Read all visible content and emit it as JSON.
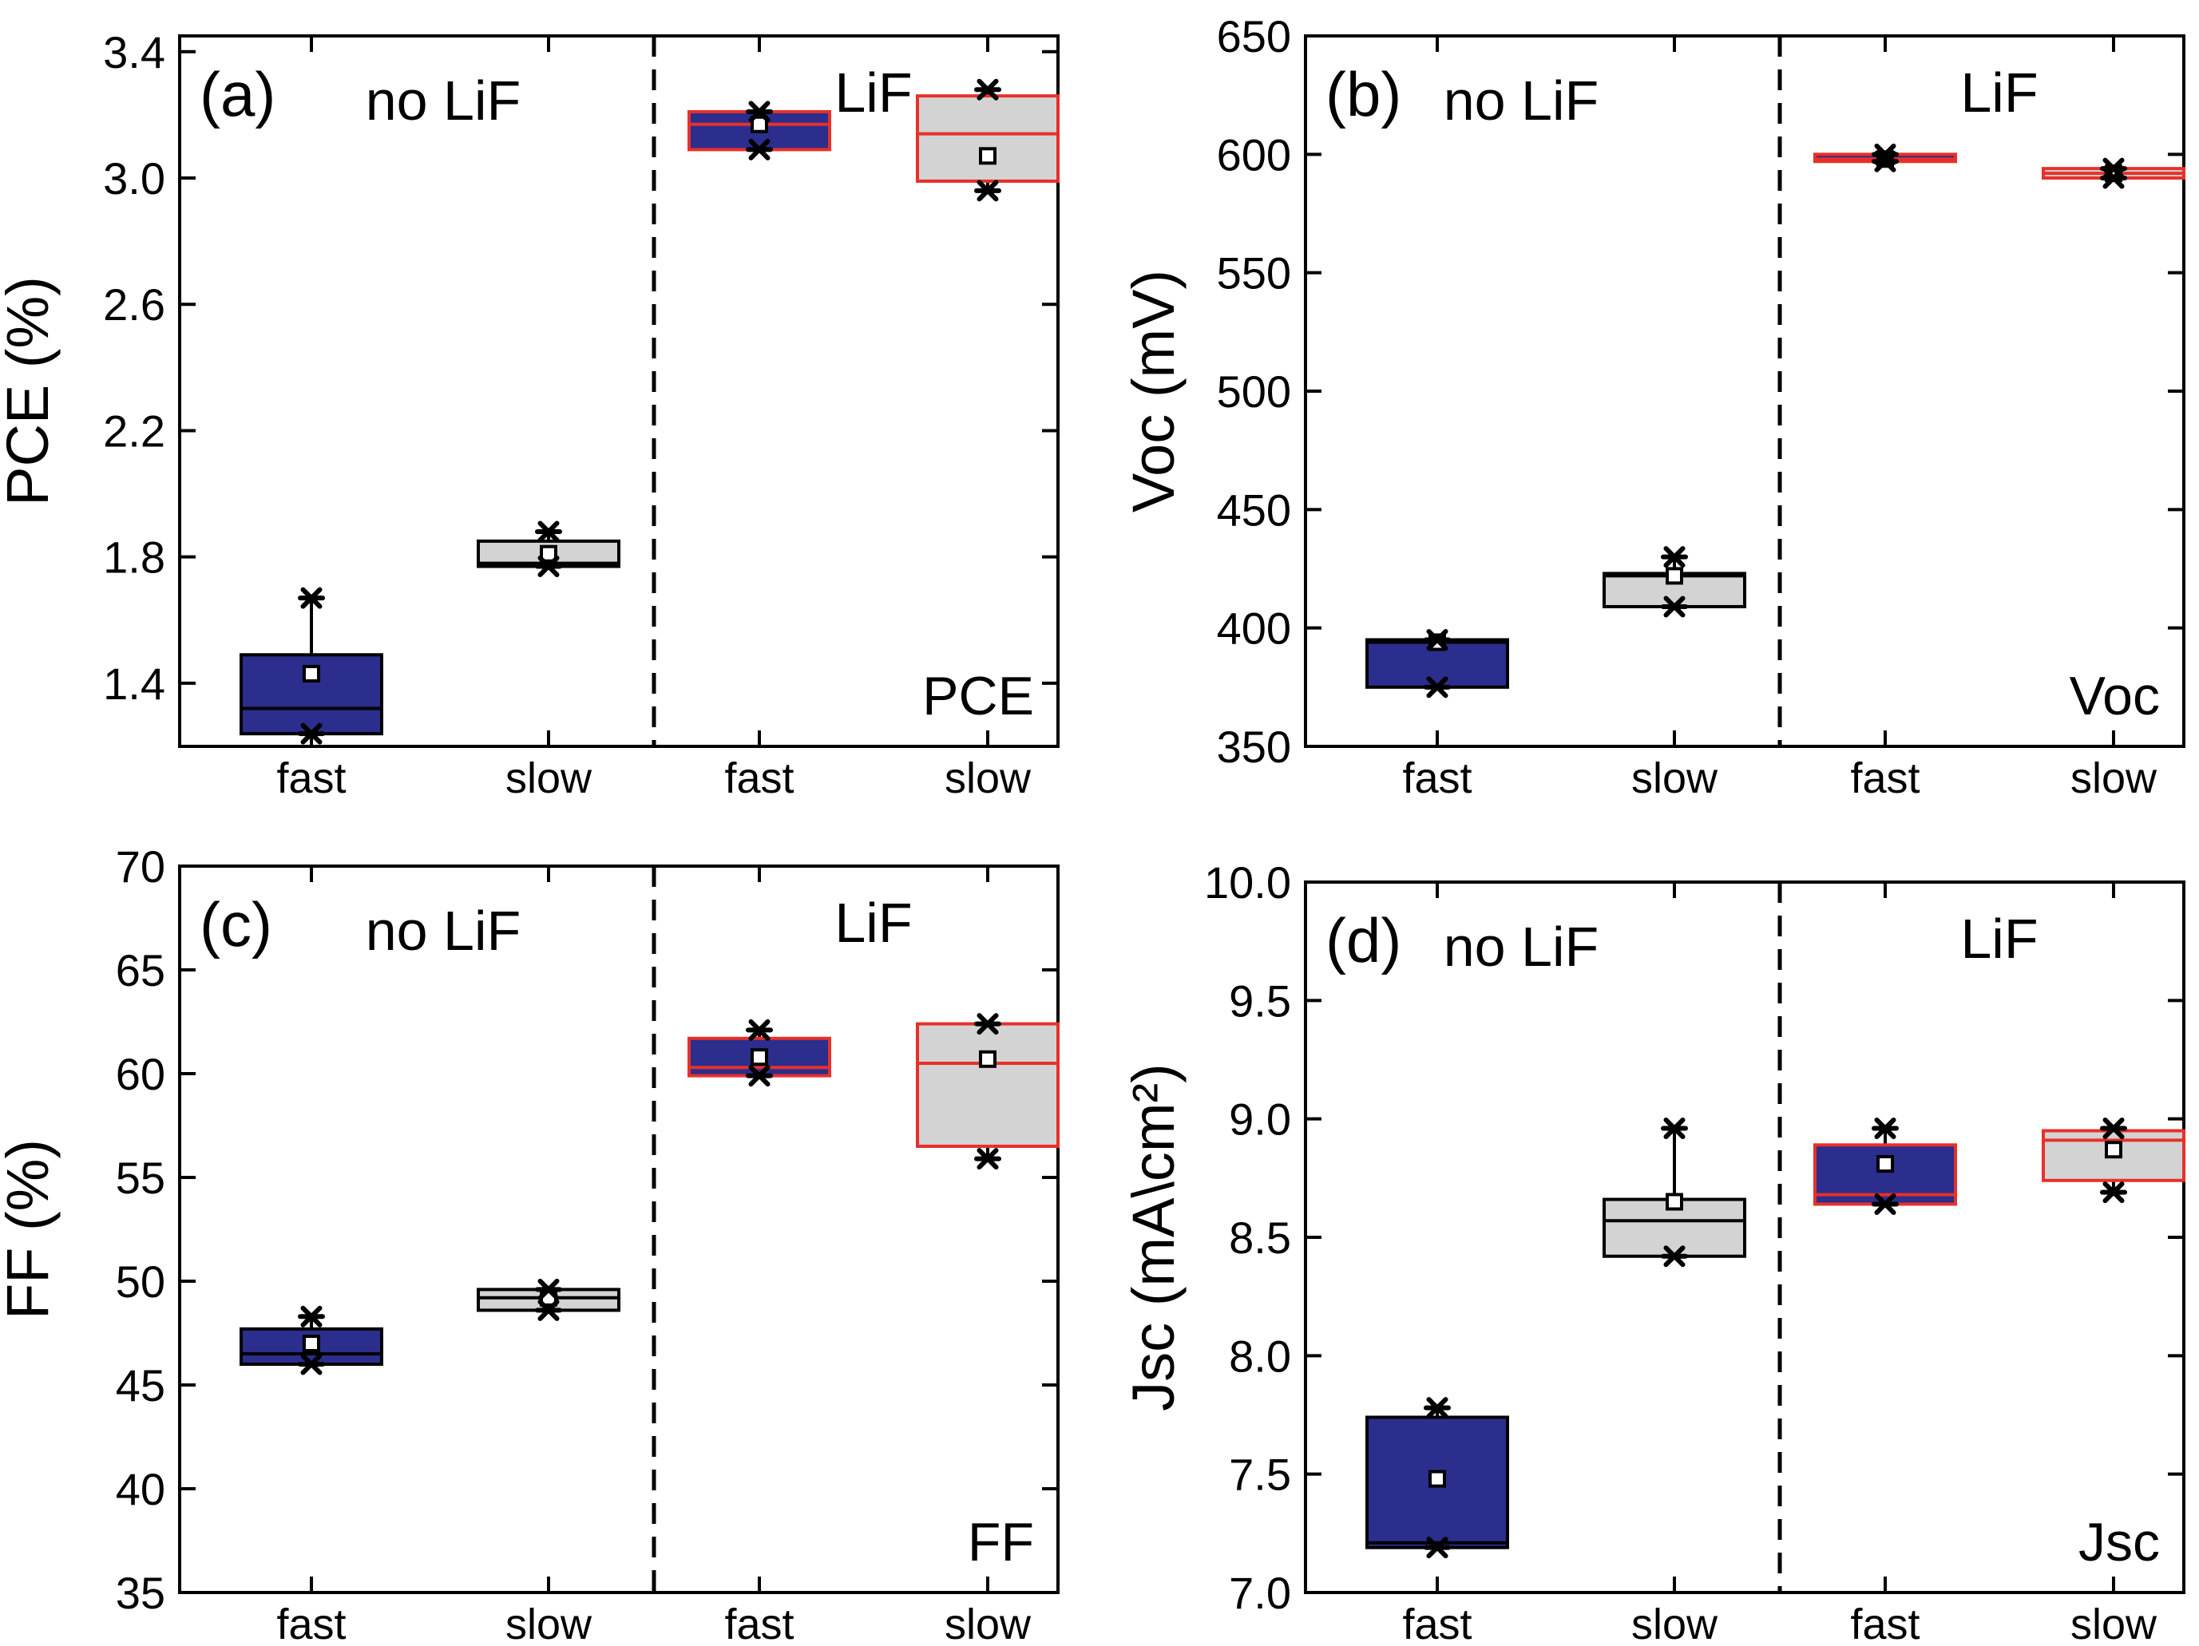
{
  "chart_data": [
    {
      "type": "box",
      "panel_tag": "(a)",
      "param_label": "PCE",
      "ylabel": "PCE (%)",
      "ylim": [
        1.2,
        3.45
      ],
      "ytick_values": [
        1.4,
        1.8,
        2.2,
        2.6,
        3.0,
        3.4
      ],
      "ytick_labels": [
        "1.4",
        "1.8",
        "2.2",
        "2.6",
        "3.0",
        "3.4"
      ],
      "groups": [
        "no LiF",
        "LiF"
      ],
      "categories": [
        "fast",
        "slow",
        "fast",
        "slow"
      ],
      "boxes": [
        {
          "group": "no LiF",
          "category": "fast",
          "q1": 1.24,
          "median": 1.32,
          "q3": 1.49,
          "mean": 1.43,
          "min": 1.24,
          "max": 1.67,
          "style": "blue"
        },
        {
          "group": "no LiF",
          "category": "slow",
          "q1": 1.77,
          "median": 1.78,
          "q3": 1.85,
          "mean": 1.81,
          "min": 1.77,
          "max": 1.88,
          "style": "gray"
        },
        {
          "group": "LiF",
          "category": "fast",
          "q1": 3.09,
          "median": 3.17,
          "q3": 3.21,
          "mean": 3.17,
          "min": 3.09,
          "max": 3.21,
          "style": "blue-red"
        },
        {
          "group": "LiF",
          "category": "slow",
          "q1": 2.99,
          "median": 3.14,
          "q3": 3.26,
          "mean": 3.07,
          "min": 2.96,
          "max": 3.28,
          "style": "gray-red"
        }
      ]
    },
    {
      "type": "box",
      "panel_tag": "(b)",
      "param_label": "Voc",
      "ylabel": "Voc (mV)",
      "ylim": [
        350,
        650
      ],
      "ytick_values": [
        350,
        400,
        450,
        500,
        550,
        600,
        650
      ],
      "ytick_labels": [
        "350",
        "400",
        "450",
        "500",
        "550",
        "600",
        "650"
      ],
      "groups": [
        "no LiF",
        "LiF"
      ],
      "categories": [
        "fast",
        "slow",
        "fast",
        "slow"
      ],
      "boxes": [
        {
          "group": "no LiF",
          "category": "fast",
          "q1": 375,
          "median": 394,
          "q3": 395,
          "mean": 394,
          "min": 375,
          "max": 395,
          "style": "blue"
        },
        {
          "group": "no LiF",
          "category": "slow",
          "q1": 409,
          "median": 422,
          "q3": 423,
          "mean": 422,
          "min": 409,
          "max": 430,
          "style": "gray"
        },
        {
          "group": "LiF",
          "category": "fast",
          "q1": 597,
          "median": 598,
          "q3": 600,
          "mean": 598,
          "min": 597,
          "max": 600,
          "style": "blue-red"
        },
        {
          "group": "LiF",
          "category": "slow",
          "q1": 590,
          "median": 592,
          "q3": 594,
          "mean": 592,
          "min": 590,
          "max": 594,
          "style": "gray-red"
        }
      ]
    },
    {
      "type": "box",
      "panel_tag": "(c)",
      "param_label": "FF",
      "ylabel": "FF (%)",
      "ylim": [
        35,
        70
      ],
      "ytick_values": [
        35,
        40,
        45,
        50,
        55,
        60,
        65,
        70
      ],
      "ytick_labels": [
        "35",
        "40",
        "45",
        "50",
        "55",
        "60",
        "65",
        "70"
      ],
      "groups": [
        "no LiF",
        "LiF"
      ],
      "categories": [
        "fast",
        "slow",
        "fast",
        "slow"
      ],
      "boxes": [
        {
          "group": "no LiF",
          "category": "fast",
          "q1": 46.0,
          "median": 46.5,
          "q3": 47.7,
          "mean": 47.0,
          "min": 46.0,
          "max": 48.3,
          "style": "blue"
        },
        {
          "group": "no LiF",
          "category": "slow",
          "q1": 48.6,
          "median": 49.2,
          "q3": 49.6,
          "mean": 49.2,
          "min": 48.6,
          "max": 49.6,
          "style": "gray"
        },
        {
          "group": "LiF",
          "category": "fast",
          "q1": 59.9,
          "median": 60.3,
          "q3": 61.7,
          "mean": 60.8,
          "min": 59.9,
          "max": 62.1,
          "style": "blue-red"
        },
        {
          "group": "LiF",
          "category": "slow",
          "q1": 56.5,
          "median": 60.5,
          "q3": 62.4,
          "mean": 60.7,
          "min": 55.9,
          "max": 62.4,
          "style": "gray-red"
        }
      ]
    },
    {
      "type": "box",
      "panel_tag": "(d)",
      "param_label": "Jsc",
      "ylabel": "Jsc (mA\\cm²)",
      "ylim": [
        7.0,
        10.0
      ],
      "ytick_values": [
        7.0,
        7.5,
        8.0,
        8.5,
        9.0,
        9.5,
        10.0
      ],
      "ytick_labels": [
        "7.0",
        "7.5",
        "8.0",
        "8.5",
        "9.0",
        "9.5",
        "10.0"
      ],
      "groups": [
        "no LiF",
        "LiF"
      ],
      "categories": [
        "fast",
        "slow",
        "fast",
        "slow"
      ],
      "boxes": [
        {
          "group": "no LiF",
          "category": "fast",
          "q1": 7.19,
          "median": 7.21,
          "q3": 7.74,
          "mean": 7.48,
          "min": 7.19,
          "max": 7.78,
          "style": "blue"
        },
        {
          "group": "no LiF",
          "category": "slow",
          "q1": 8.42,
          "median": 8.57,
          "q3": 8.66,
          "mean": 8.65,
          "min": 8.42,
          "max": 8.96,
          "style": "gray"
        },
        {
          "group": "LiF",
          "category": "fast",
          "q1": 8.64,
          "median": 8.68,
          "q3": 8.89,
          "mean": 8.81,
          "min": 8.64,
          "max": 8.96,
          "style": "blue-red"
        },
        {
          "group": "LiF",
          "category": "slow",
          "q1": 8.74,
          "median": 8.91,
          "q3": 8.95,
          "mean": 8.87,
          "min": 8.69,
          "max": 8.96,
          "style": "gray-red"
        }
      ]
    }
  ],
  "colors": {
    "blue_fill": "#2b2e8c",
    "gray_fill": "#d3d3d3",
    "red_edge": "#e8302a",
    "black": "#000000"
  }
}
